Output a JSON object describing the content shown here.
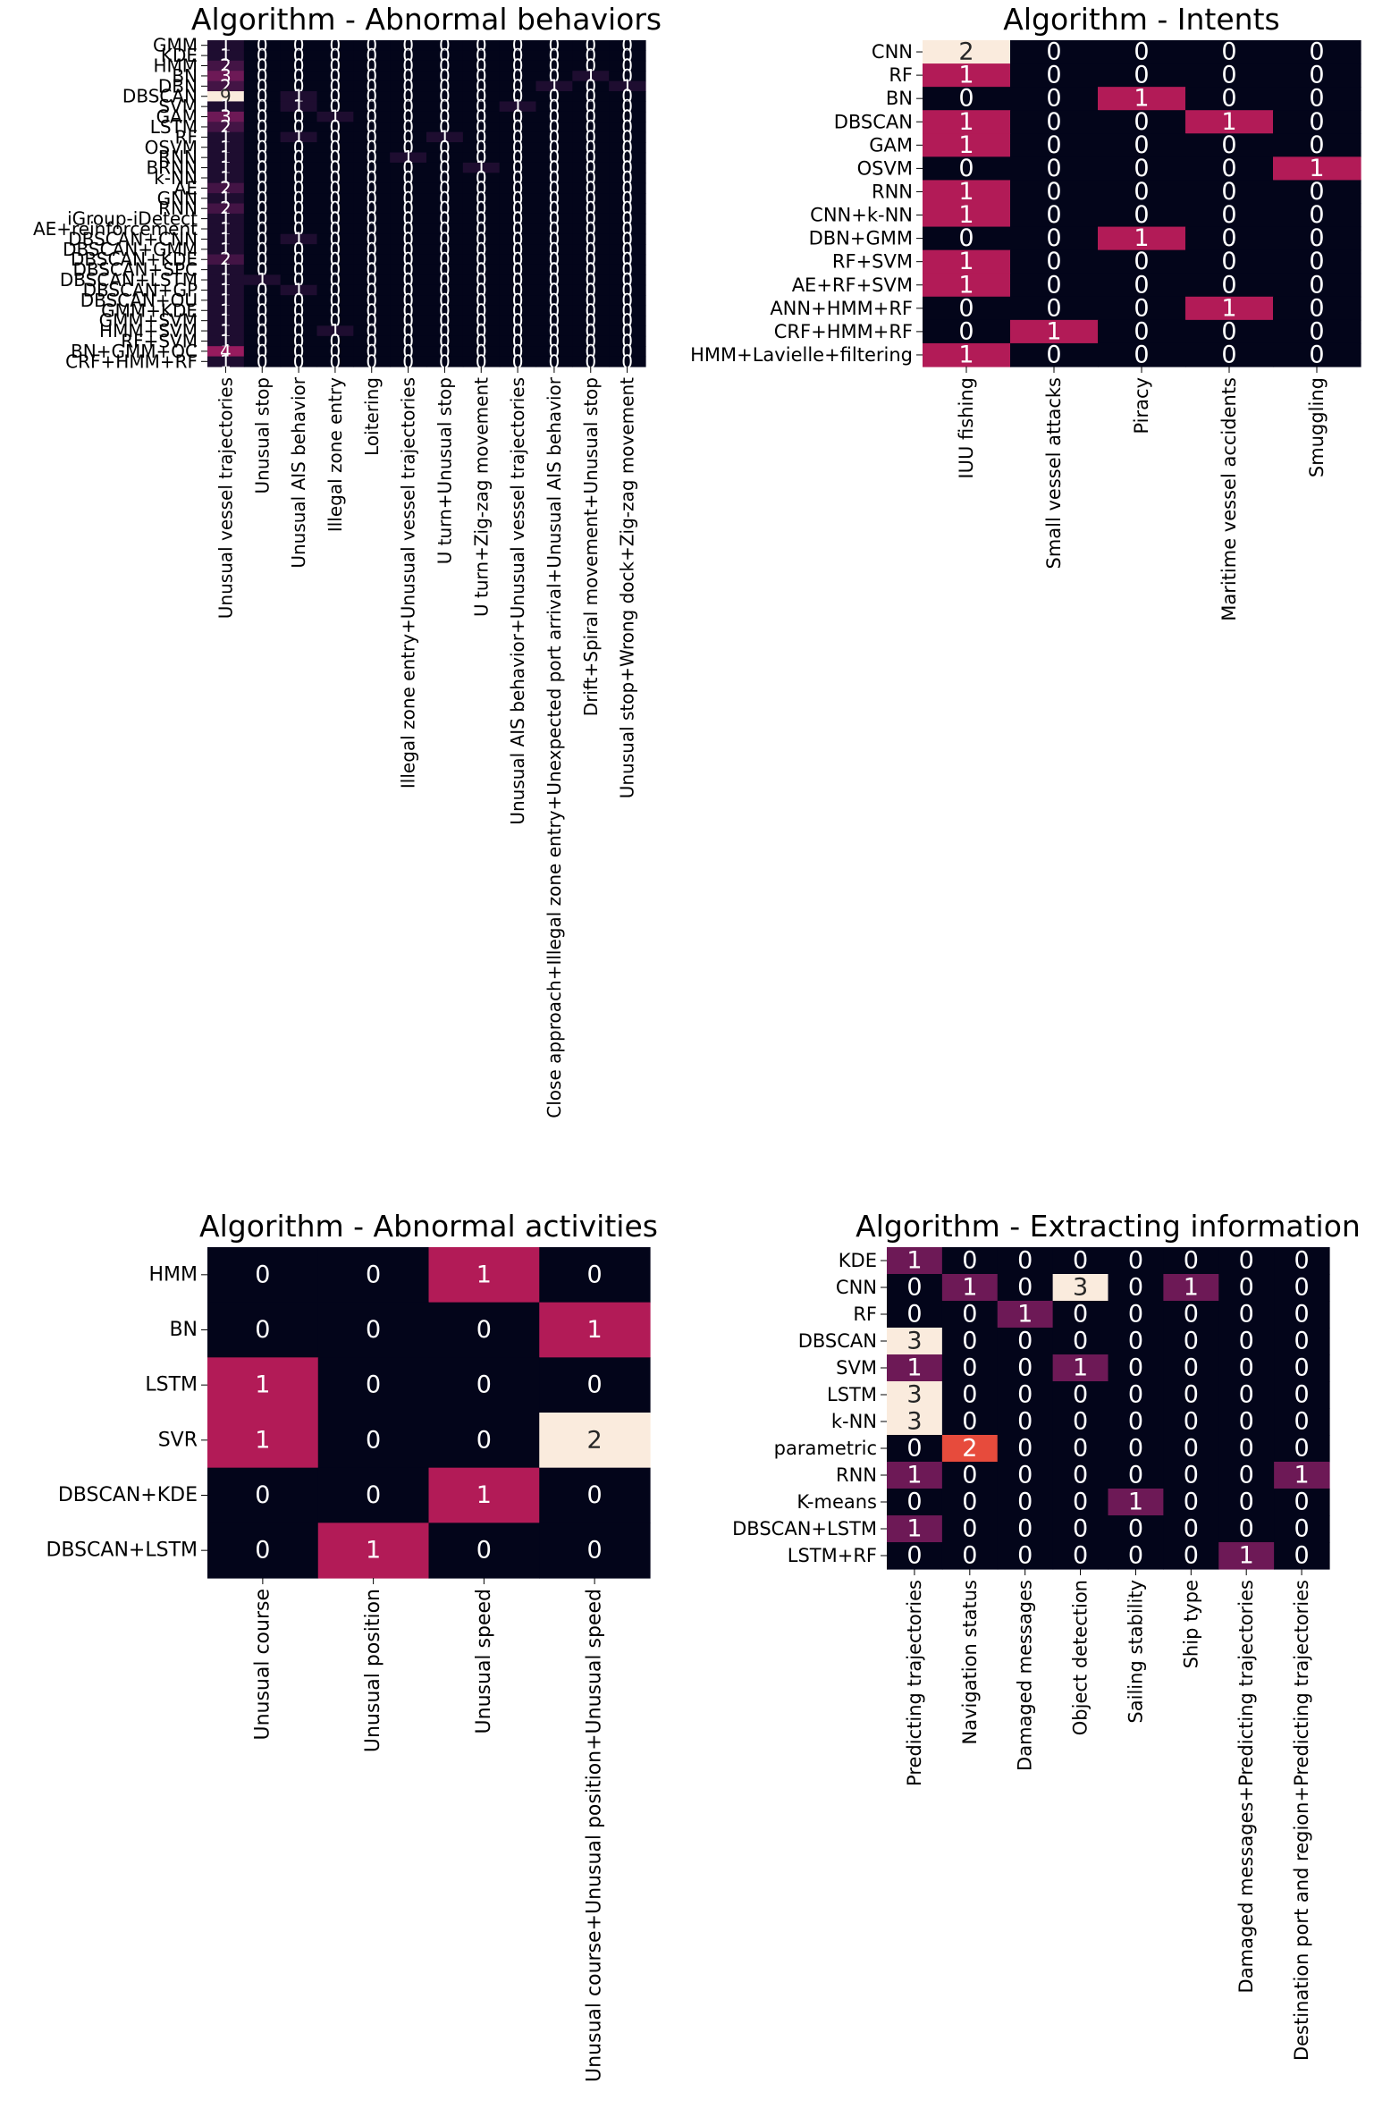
{
  "charts": [
    {
      "title": "Algorithm - Abnormal behaviors",
      "type": "heatmap",
      "rows": [
        "GMM",
        "KDE",
        "HMM",
        "BN",
        "DBN",
        "DBSCAN",
        "SVM",
        "GAM",
        "LSTM",
        "RF",
        "OSVM",
        "RNN",
        "BRNN",
        "k-NN",
        "AE",
        "GNN",
        "RNN",
        "iGroup-iDetect",
        "AE+reinforcement",
        "DBSCAN+CNN",
        "DBSCAN+GMM",
        "DBSCAN+KDE",
        "DBSCAN+SPC",
        "DBSCAN+LSTM",
        "DBSCAN+GP",
        "DBSCAN+OU",
        "GMM+KDE",
        "GMM+SVM",
        "HMM+SVM",
        "RF+SVM",
        "BN+GMM+OC",
        "CRF+HMM+RF"
      ],
      "cols": [
        "Unusual vessel trajectories",
        "Unusual stop",
        "Unusual AIS behavior",
        "Illegal zone entry",
        "Loitering",
        "Illegal zone entry+Unusual vessel trajectories",
        "U turn+Unusual stop",
        "U turn+Zig-zag movement",
        "Unusual AIS behavior+Unusual vessel trajectories",
        "Close approach+Illegal zone entry+Unexpected port arrival+Unusual AIS behavior",
        "Drift+Spiral movement+Unusual stop",
        "Unusual stop+Wrong dock+Zig-zag movement"
      ],
      "values": [
        [
          1,
          0,
          0,
          0,
          0,
          0,
          0,
          0,
          0,
          0,
          0,
          0
        ],
        [
          1,
          0,
          0,
          0,
          0,
          0,
          0,
          0,
          0,
          0,
          0,
          0
        ],
        [
          2,
          0,
          0,
          0,
          0,
          0,
          0,
          0,
          0,
          0,
          0,
          0
        ],
        [
          3,
          0,
          0,
          0,
          0,
          0,
          0,
          0,
          0,
          0,
          1,
          0
        ],
        [
          2,
          0,
          0,
          0,
          0,
          0,
          0,
          0,
          0,
          1,
          0,
          1
        ],
        [
          9,
          0,
          1,
          0,
          0,
          0,
          0,
          0,
          0,
          0,
          0,
          0
        ],
        [
          1,
          0,
          1,
          0,
          0,
          0,
          0,
          0,
          1,
          0,
          0,
          0
        ],
        [
          3,
          0,
          0,
          1,
          0,
          0,
          0,
          0,
          0,
          0,
          0,
          0
        ],
        [
          2,
          0,
          0,
          0,
          0,
          0,
          0,
          0,
          0,
          0,
          0,
          0
        ],
        [
          1,
          0,
          1,
          0,
          0,
          0,
          1,
          0,
          0,
          0,
          0,
          0
        ],
        [
          1,
          0,
          0,
          0,
          0,
          0,
          0,
          0,
          0,
          0,
          0,
          0
        ],
        [
          1,
          0,
          0,
          0,
          0,
          1,
          0,
          0,
          0,
          0,
          0,
          0
        ],
        [
          1,
          0,
          0,
          0,
          0,
          0,
          0,
          1,
          0,
          0,
          0,
          0
        ],
        [
          1,
          0,
          0,
          0,
          0,
          0,
          0,
          0,
          0,
          0,
          0,
          0
        ],
        [
          2,
          0,
          0,
          0,
          0,
          0,
          0,
          0,
          0,
          0,
          0,
          0
        ],
        [
          1,
          0,
          0,
          0,
          0,
          0,
          0,
          0,
          0,
          0,
          0,
          0
        ],
        [
          2,
          0,
          0,
          0,
          0,
          0,
          0,
          0,
          0,
          0,
          0,
          0
        ],
        [
          1,
          0,
          0,
          0,
          0,
          0,
          0,
          0,
          0,
          0,
          0,
          0
        ],
        [
          1,
          0,
          0,
          0,
          0,
          0,
          0,
          0,
          0,
          0,
          0,
          0
        ],
        [
          1,
          0,
          1,
          0,
          0,
          0,
          0,
          0,
          0,
          0,
          0,
          0
        ],
        [
          1,
          0,
          0,
          0,
          0,
          0,
          0,
          0,
          0,
          0,
          0,
          0
        ],
        [
          2,
          0,
          0,
          0,
          0,
          0,
          0,
          0,
          0,
          0,
          0,
          0
        ],
        [
          1,
          0,
          0,
          0,
          0,
          0,
          0,
          0,
          0,
          0,
          0,
          0
        ],
        [
          1,
          1,
          0,
          0,
          0,
          0,
          0,
          0,
          0,
          0,
          0,
          0
        ],
        [
          1,
          0,
          1,
          0,
          0,
          0,
          0,
          0,
          0,
          0,
          0,
          0
        ],
        [
          1,
          0,
          0,
          0,
          0,
          0,
          0,
          0,
          0,
          0,
          0,
          0
        ],
        [
          1,
          0,
          0,
          0,
          0,
          0,
          0,
          0,
          0,
          0,
          0,
          0
        ],
        [
          1,
          0,
          0,
          0,
          0,
          0,
          0,
          0,
          0,
          0,
          0,
          0
        ],
        [
          1,
          0,
          0,
          1,
          0,
          0,
          0,
          0,
          0,
          0,
          0,
          0
        ],
        [
          1,
          0,
          0,
          0,
          0,
          0,
          0,
          0,
          0,
          0,
          0,
          0
        ],
        [
          4,
          0,
          0,
          0,
          0,
          0,
          0,
          0,
          0,
          0,
          0,
          0
        ],
        [
          1,
          0,
          0,
          0,
          0,
          0,
          0,
          0,
          0,
          0,
          0,
          0
        ]
      ],
      "vmax": 9
    },
    {
      "title": "Algorithm - Intents",
      "type": "heatmap",
      "rows": [
        "CNN",
        "RF",
        "BN",
        "DBSCAN",
        "GAM",
        "OSVM",
        "RNN",
        "CNN+k-NN",
        "DBN+GMM",
        "RF+SVM",
        "AE+RF+SVM",
        "ANN+HMM+RF",
        "CRF+HMM+RF",
        "HMM+Lavielle+filtering"
      ],
      "cols": [
        "IUU fishing",
        "Small vessel attacks",
        "Piracy",
        "Maritime vessel accidents",
        "Smuggling"
      ],
      "values": [
        [
          2,
          0,
          0,
          0,
          0
        ],
        [
          1,
          0,
          0,
          0,
          0
        ],
        [
          0,
          0,
          1,
          0,
          0
        ],
        [
          1,
          0,
          0,
          1,
          0
        ],
        [
          1,
          0,
          0,
          0,
          0
        ],
        [
          0,
          0,
          0,
          0,
          1
        ],
        [
          1,
          0,
          0,
          0,
          0
        ],
        [
          1,
          0,
          0,
          0,
          0
        ],
        [
          0,
          0,
          1,
          0,
          0
        ],
        [
          1,
          0,
          0,
          0,
          0
        ],
        [
          1,
          0,
          0,
          0,
          0
        ],
        [
          0,
          0,
          0,
          1,
          0
        ],
        [
          0,
          1,
          0,
          0,
          0
        ],
        [
          1,
          0,
          0,
          0,
          0
        ]
      ],
      "vmax": 2
    },
    {
      "title": "Algorithm - Abnormal activities",
      "type": "heatmap",
      "rows": [
        "HMM",
        "BN",
        "LSTM",
        "SVR",
        "DBSCAN+KDE",
        "DBSCAN+LSTM"
      ],
      "cols": [
        "Unusual course",
        "Unusual position",
        "Unusual speed",
        "Unusual course+Unusual position+Unusual speed"
      ],
      "values": [
        [
          0,
          0,
          1,
          0
        ],
        [
          0,
          0,
          0,
          1
        ],
        [
          1,
          0,
          0,
          0
        ],
        [
          1,
          0,
          0,
          2
        ],
        [
          0,
          0,
          1,
          0
        ],
        [
          0,
          1,
          0,
          0
        ]
      ],
      "vmax": 2
    },
    {
      "title": "Algorithm - Extracting information",
      "type": "heatmap",
      "rows": [
        "KDE",
        "CNN",
        "RF",
        "DBSCAN",
        "SVM",
        "LSTM",
        "k-NN",
        "parametric",
        "RNN",
        "K-means",
        "DBSCAN+LSTM",
        "LSTM+RF"
      ],
      "cols": [
        "Predicting trajectories",
        "Navigation status",
        "Damaged messages",
        "Object detection",
        "Sailing stability",
        "Ship type",
        "Damaged messages+Predicting trajectories",
        "Destination port and region+Predicting trajectories"
      ],
      "values": [
        [
          1,
          0,
          0,
          0,
          0,
          0,
          0,
          0
        ],
        [
          0,
          1,
          0,
          3,
          0,
          1,
          0,
          0
        ],
        [
          0,
          0,
          1,
          0,
          0,
          0,
          0,
          0
        ],
        [
          3,
          0,
          0,
          0,
          0,
          0,
          0,
          0
        ],
        [
          1,
          0,
          0,
          1,
          0,
          0,
          0,
          0
        ],
        [
          3,
          0,
          0,
          0,
          0,
          0,
          0,
          0
        ],
        [
          3,
          0,
          0,
          0,
          0,
          0,
          0,
          0
        ],
        [
          0,
          2,
          0,
          0,
          0,
          0,
          0,
          0
        ],
        [
          1,
          0,
          0,
          0,
          0,
          0,
          0,
          1
        ],
        [
          0,
          0,
          0,
          0,
          1,
          0,
          0,
          0
        ],
        [
          1,
          0,
          0,
          0,
          0,
          0,
          0,
          0
        ],
        [
          0,
          0,
          0,
          0,
          0,
          0,
          1,
          0
        ]
      ],
      "vmax": 3
    }
  ],
  "chart_data": [
    {
      "type": "heatmap",
      "title": "Algorithm - Abnormal behaviors",
      "note": "see charts[0]"
    },
    {
      "type": "heatmap",
      "title": "Algorithm - Intents",
      "note": "see charts[1]"
    },
    {
      "type": "heatmap",
      "title": "Algorithm - Abnormal activities",
      "note": "see charts[2]"
    },
    {
      "type": "heatmap",
      "title": "Algorithm - Extracting information",
      "note": "see charts[3]"
    }
  ]
}
